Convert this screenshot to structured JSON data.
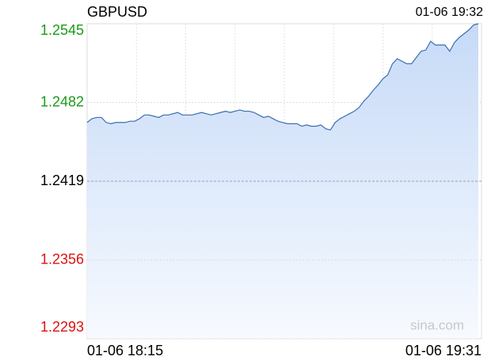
{
  "chart_data": {
    "type": "line",
    "title": "GBPUSD",
    "timestamp": "01-06 19:32",
    "watermark": "sina.com",
    "xtick_labels": [
      "01-06 18:15",
      "01-06 19:31"
    ],
    "values": [
      1.2466,
      1.2469,
      1.247,
      1.247,
      1.2466,
      1.2465,
      1.2466,
      1.2466,
      1.2466,
      1.2467,
      1.2467,
      1.2469,
      1.2472,
      1.2472,
      1.2471,
      1.247,
      1.2472,
      1.2472,
      1.2473,
      1.2474,
      1.2472,
      1.2472,
      1.2472,
      1.2473,
      1.2474,
      1.2473,
      1.2472,
      1.2473,
      1.2474,
      1.2475,
      1.2474,
      1.2475,
      1.2476,
      1.2475,
      1.2475,
      1.2474,
      1.2472,
      1.247,
      1.2471,
      1.2469,
      1.2467,
      1.2466,
      1.2465,
      1.2465,
      1.2465,
      1.2463,
      1.2464,
      1.2463,
      1.2463,
      1.2464,
      1.2461,
      1.246,
      1.2466,
      1.2469,
      1.2471,
      1.2473,
      1.2475,
      1.2478,
      1.2483,
      1.2487,
      1.2492,
      1.2496,
      1.2501,
      1.2504,
      1.2513,
      1.2517,
      1.2515,
      1.2513,
      1.2513,
      1.2518,
      1.2523,
      1.2524,
      1.2531,
      1.2528,
      1.2528,
      1.2528,
      1.2523,
      1.253,
      1.2534,
      1.2537,
      1.254,
      1.2544,
      1.2545
    ],
    "color": "#3b6db3",
    "ylim": [
      1.2293,
      1.2545
    ],
    "yticks": [
      1.2293,
      1.2356,
      1.2419,
      1.2482,
      1.2545
    ],
    "tick_colors": {
      "up": "#1a9a1a",
      "flat": "#000000",
      "down": "#dd1111"
    },
    "grid": true
  }
}
